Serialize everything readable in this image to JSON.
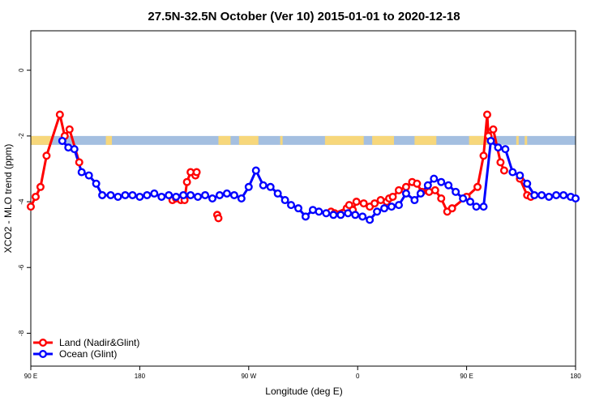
{
  "chart_data": {
    "type": "line",
    "title": "27.5N-32.5N October (Ver 10)   2015-01-01 to 2020-12-18",
    "xlabel": "Longitude (deg E)",
    "ylabel": "XCO2 - MLO trend (ppm)",
    "xlim": [
      90,
      540
    ],
    "ylim": [
      -9,
      1.2
    ],
    "x_ticks": [
      {
        "value": 90,
        "label": "90 E"
      },
      {
        "value": 180,
        "label": "180"
      },
      {
        "value": 270,
        "label": "90 W"
      },
      {
        "value": 360,
        "label": "0"
      },
      {
        "value": 450,
        "label": "90 E"
      },
      {
        "value": 540,
        "label": "180"
      }
    ],
    "y_ticks": [
      {
        "value": 0,
        "label": "0"
      },
      {
        "value": -2,
        "label": "-2"
      },
      {
        "value": -4,
        "label": "-4"
      },
      {
        "value": -6,
        "label": "-6"
      },
      {
        "value": -8,
        "label": "-8"
      }
    ],
    "landmask_band": {
      "y_top": -2.0,
      "y_bottom": -2.27,
      "ocean_color": "#a4bfe0",
      "land_color": "#f7d77b",
      "land_segments": [
        [
          90,
          107
        ],
        [
          152,
          157
        ],
        [
          245,
          255
        ],
        [
          262,
          278
        ],
        [
          296,
          298
        ],
        [
          333,
          365
        ],
        [
          372,
          390
        ],
        [
          407,
          425
        ],
        [
          452,
          469
        ],
        [
          491,
          493
        ],
        [
          498,
          500
        ]
      ]
    },
    "legend": {
      "position": "bottom-left"
    },
    "series": [
      {
        "name": "Land (Nadir&Glint)",
        "color": "#ff0000",
        "x": [
          90,
          94,
          98,
          103,
          114,
          118,
          122,
          130,
          207,
          210,
          214,
          217,
          219,
          222,
          226,
          227,
          244,
          245,
          338,
          341,
          351,
          353,
          356,
          359,
          365,
          370,
          374,
          379,
          384,
          386,
          389,
          394,
          400,
          405,
          409,
          413,
          419,
          424,
          429,
          434,
          438,
          450,
          459,
          464,
          467,
          468,
          472,
          478,
          481,
          494,
          500,
          503
        ],
        "y": [
          -4.15,
          -3.85,
          -3.55,
          -2.6,
          -1.35,
          -2.0,
          -1.8,
          -2.8,
          -3.95,
          -3.9,
          -3.95,
          -3.95,
          -3.4,
          -3.1,
          -3.2,
          -3.1,
          -4.4,
          -4.5,
          -4.3,
          -4.35,
          -4.2,
          -4.1,
          -4.25,
          -4.0,
          -4.05,
          -4.15,
          -4.05,
          -3.95,
          -4.0,
          -3.9,
          -3.85,
          -3.65,
          -3.55,
          -3.4,
          -3.45,
          -3.7,
          -3.7,
          -3.65,
          -3.9,
          -4.3,
          -4.2,
          -3.85,
          -3.55,
          -2.6,
          -1.35,
          -2.0,
          -1.8,
          -2.8,
          -3.05,
          -3.3,
          -3.8,
          -3.85
        ]
      },
      {
        "name": "Ocean (Glint)",
        "color": "#0000ff",
        "x": [
          116,
          121,
          126,
          132,
          138,
          144,
          149,
          156,
          162,
          168,
          174,
          180,
          186,
          192,
          198,
          204,
          210,
          216,
          222,
          228,
          234,
          240,
          246,
          252,
          258,
          264,
          270,
          276,
          282,
          288,
          294,
          300,
          305,
          311,
          317,
          323,
          328,
          334,
          340,
          346,
          352,
          358,
          364,
          370,
          376,
          382,
          388,
          394,
          400,
          407,
          412,
          418,
          423,
          429,
          435,
          441,
          447,
          453,
          458,
          464,
          470,
          476,
          482,
          488,
          494,
          500,
          506,
          512,
          518,
          524,
          530,
          536,
          540
        ],
        "y": [
          -2.15,
          -2.35,
          -2.4,
          -3.1,
          -3.2,
          -3.45,
          -3.8,
          -3.8,
          -3.85,
          -3.8,
          -3.8,
          -3.85,
          -3.8,
          -3.75,
          -3.85,
          -3.8,
          -3.85,
          -3.8,
          -3.8,
          -3.85,
          -3.8,
          -3.9,
          -3.8,
          -3.75,
          -3.8,
          -3.9,
          -3.55,
          -3.05,
          -3.5,
          -3.55,
          -3.75,
          -3.95,
          -4.1,
          -4.2,
          -4.45,
          -4.25,
          -4.3,
          -4.35,
          -4.4,
          -4.4,
          -4.35,
          -4.4,
          -4.45,
          -4.55,
          -4.3,
          -4.2,
          -4.15,
          -4.1,
          -3.75,
          -3.95,
          -3.75,
          -3.5,
          -3.3,
          -3.4,
          -3.5,
          -3.7,
          -3.9,
          -4.0,
          -4.15,
          -4.15,
          -2.15,
          -2.35,
          -2.4,
          -3.1,
          -3.2,
          -3.45,
          -3.8,
          -3.8,
          -3.85,
          -3.8,
          -3.8,
          -3.85,
          -3.9
        ]
      }
    ]
  }
}
